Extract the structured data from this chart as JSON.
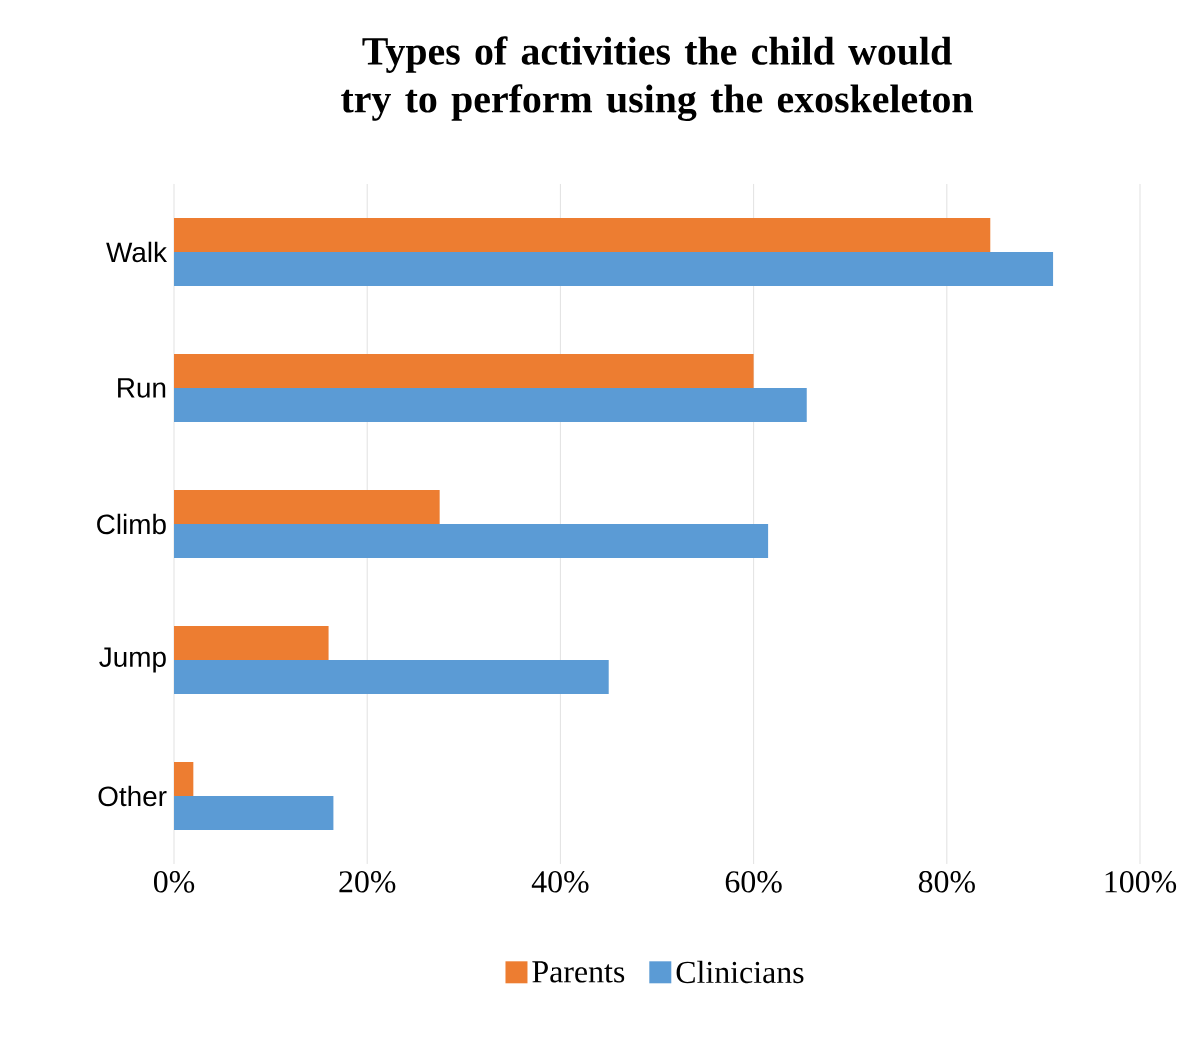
{
  "chart_data": {
    "type": "bar",
    "orientation": "horizontal",
    "title": "Types of activities the child would try to perform using the exoskeleton",
    "categories": [
      "Walk",
      "Run",
      "Climb",
      "Jump",
      "Other"
    ],
    "series": [
      {
        "name": "Parents",
        "color": "#ed7d31",
        "values": [
          84.5,
          60,
          27.5,
          16,
          2
        ]
      },
      {
        "name": "Clinicians",
        "color": "#5b9bd5",
        "values": [
          91,
          65.5,
          61.5,
          45,
          16.5
        ]
      }
    ],
    "xlim": [
      0,
      100
    ],
    "xticks": [
      {
        "value": 0,
        "label": "0%"
      },
      {
        "value": 20,
        "label": "20%"
      },
      {
        "value": 40,
        "label": "40%"
      },
      {
        "value": 60,
        "label": "60%"
      },
      {
        "value": 80,
        "label": "80%"
      },
      {
        "value": 100,
        "label": "100%"
      }
    ],
    "grid": "x",
    "legend": "bottom"
  }
}
